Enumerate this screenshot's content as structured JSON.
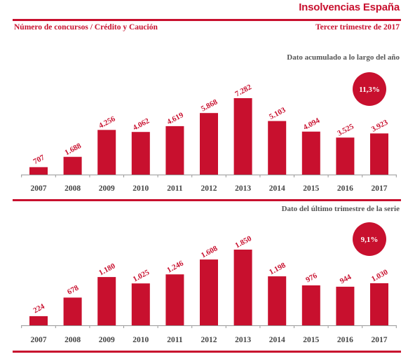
{
  "header": {
    "title": "Insolvencias España",
    "subtitle": "Número de concursos / Crédito y Caución",
    "period": "Tercer trimestre de 2017"
  },
  "colors": {
    "accent": "#c8102e",
    "axis": "#999999"
  },
  "chart_data": [
    {
      "type": "bar",
      "label": "Dato acumulado a lo largo del año",
      "badge": "11,3%",
      "categories": [
        "2007",
        "2008",
        "2009",
        "2010",
        "2011",
        "2012",
        "2013",
        "2014",
        "2015",
        "2016",
        "2017"
      ],
      "values": [
        707,
        1688,
        4256,
        4062,
        4619,
        5868,
        7282,
        5103,
        4094,
        3525,
        3923
      ],
      "value_labels": [
        "707",
        "1.688",
        "4.256",
        "4.062",
        "4.619",
        "5.868",
        "7.282",
        "5.103",
        "4.094",
        "3.525",
        "3.923"
      ],
      "ylim": [
        0,
        7282
      ]
    },
    {
      "type": "bar",
      "label": "Dato del último trimestre de la serie",
      "badge": "9,1%",
      "categories": [
        "2007",
        "2008",
        "2009",
        "2010",
        "2011",
        "2012",
        "2013",
        "2014",
        "2015",
        "2016",
        "2017"
      ],
      "values": [
        224,
        678,
        1180,
        1025,
        1246,
        1608,
        1850,
        1198,
        976,
        944,
        1030
      ],
      "value_labels": [
        "224",
        "678",
        "1.180",
        "1.025",
        "1.246",
        "1.608",
        "1.850",
        "1.198",
        "976",
        "944",
        "1.030"
      ],
      "ylim": [
        0,
        1850
      ]
    }
  ]
}
